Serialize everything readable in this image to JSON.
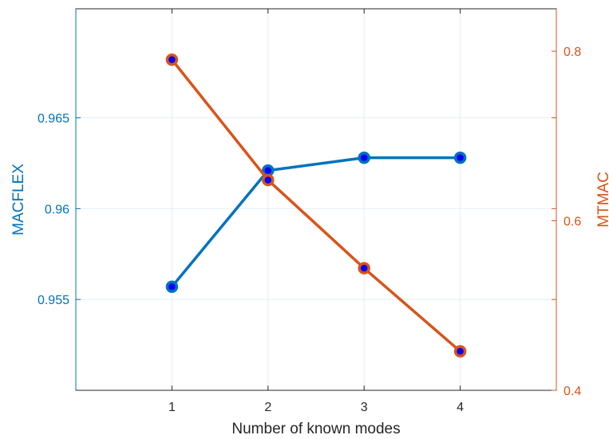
{
  "chart_data": {
    "type": "line",
    "title": "",
    "xlabel": "Number of known modes",
    "ylabel_left": "MACFLEX",
    "ylabel_right": "MTMAC",
    "x": [
      1,
      2,
      3,
      4
    ],
    "xlim": [
      0,
      5
    ],
    "xticks": [
      "1",
      "2",
      "3",
      "4"
    ],
    "ylim_left": [
      0.95,
      0.971
    ],
    "yticks_left": [
      "0.955",
      "0.96",
      "0.965"
    ],
    "ylim_right": [
      0.4,
      0.85
    ],
    "yticks_right": [
      "0.4",
      "0.6",
      "0.8"
    ],
    "grid": true,
    "legend": "none",
    "series": [
      {
        "axis": "left",
        "values": [
          0.9557,
          0.9621,
          0.9628,
          0.9628
        ],
        "color": "#0072BD",
        "marker_fill": "#0000FF"
      },
      {
        "axis": "right",
        "values": [
          0.79,
          0.648,
          0.544,
          0.446
        ],
        "color": "#D95319",
        "marker_fill": "#0000FF"
      }
    ],
    "colors": {
      "left_axis": "#0072BD",
      "right_axis": "#D95319",
      "grid": "#E6EEF5",
      "axis_line": "#262626"
    }
  }
}
